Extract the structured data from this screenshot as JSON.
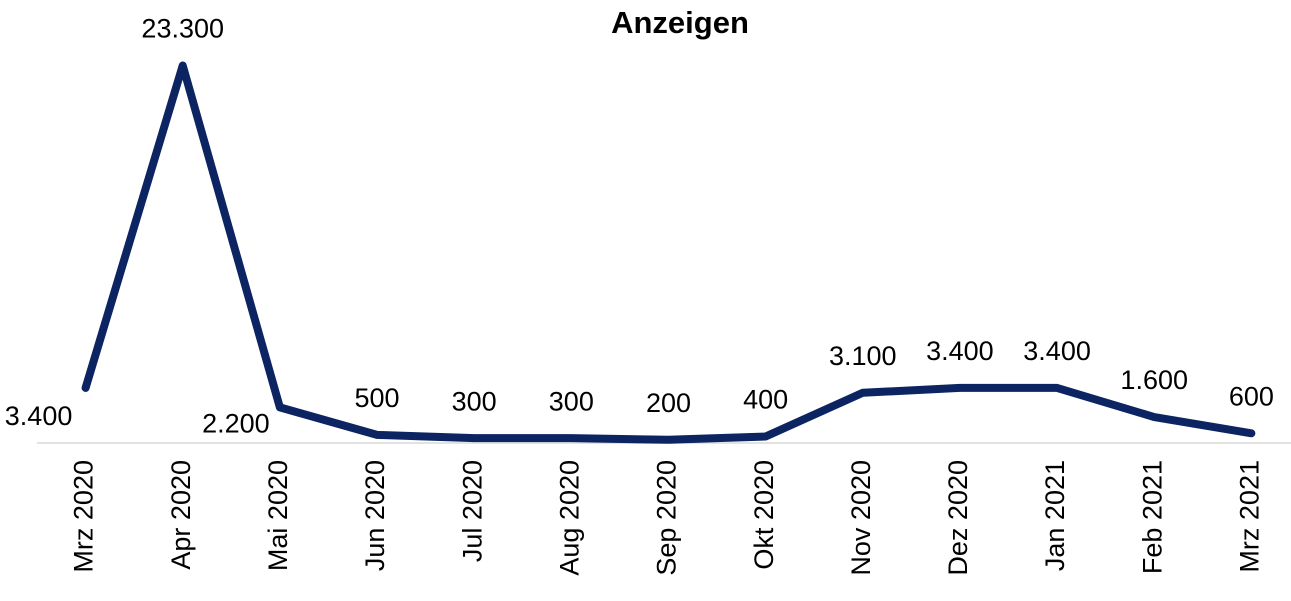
{
  "chart_data": {
    "type": "line",
    "title": "Anzeigen",
    "categories": [
      "Mrz 2020",
      "Apr 2020",
      "Mai 2020",
      "Jun 2020",
      "Jul 2020",
      "Aug 2020",
      "Sep 2020",
      "Okt 2020",
      "Nov 2020",
      "Dez 2020",
      "Jan 2021",
      "Feb 2021",
      "Mrz 2021"
    ],
    "series": [
      {
        "name": "Anzeigen",
        "color": "#0c2461",
        "values": [
          3400,
          23300,
          2200,
          500,
          300,
          300,
          200,
          400,
          3100,
          3400,
          3400,
          1600,
          600
        ],
        "value_labels": [
          "3.400",
          "23.300",
          "2.200",
          "500",
          "300",
          "300",
          "200",
          "400",
          "3.100",
          "3.400",
          "3.400",
          "1.600",
          "600"
        ]
      }
    ],
    "ylim": [
      0,
      25000
    ]
  }
}
